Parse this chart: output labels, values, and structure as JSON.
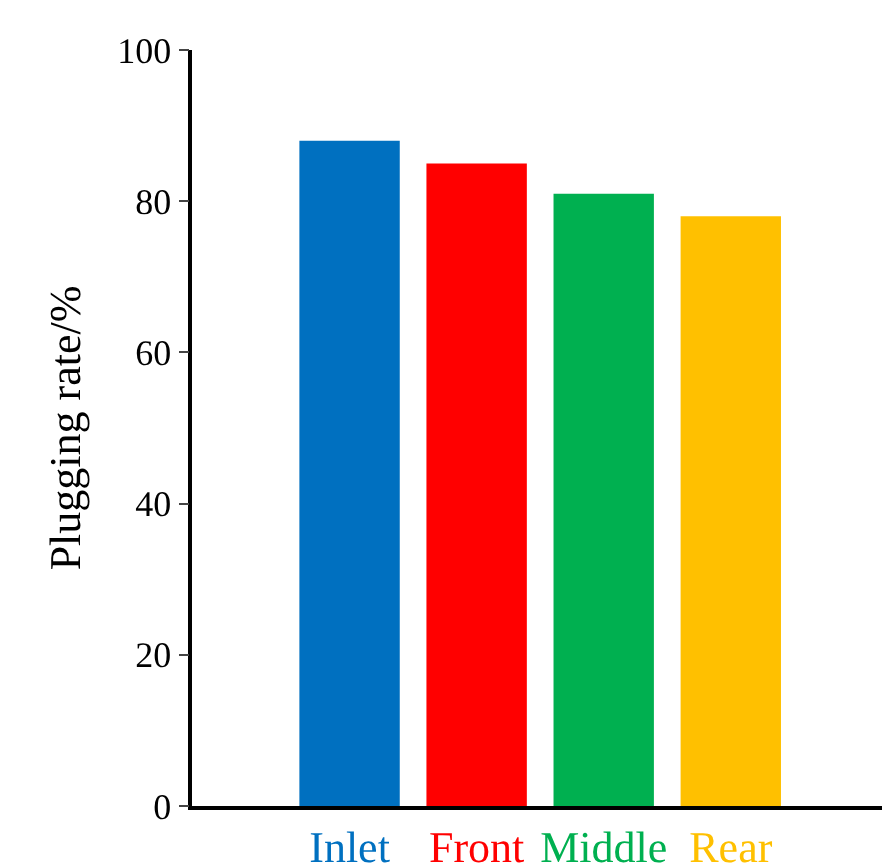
{
  "chart_data": {
    "type": "bar",
    "ylabel": "Plugging rate/%",
    "categories": [
      "Inlet",
      "Front",
      "Middle",
      "Rear"
    ],
    "values": [
      88,
      85,
      81,
      78
    ],
    "colors": [
      "#0070c0",
      "#ff0000",
      "#00b050",
      "#ffc000"
    ],
    "ylim": [
      0,
      100
    ],
    "yticks": [
      0,
      20,
      40,
      60,
      80,
      100
    ],
    "grid": false
  }
}
